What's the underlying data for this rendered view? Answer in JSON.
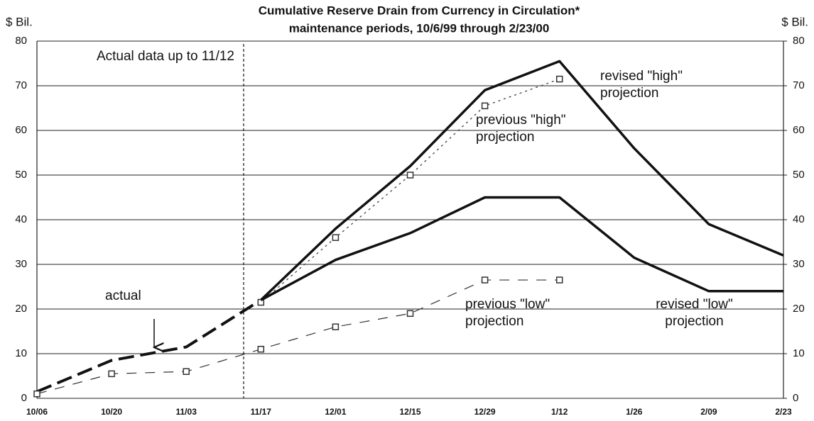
{
  "chart_data": {
    "type": "line",
    "title": "Cumulative Reserve Drain from Currency in Circulation*",
    "subtitle": "maintenance periods, 10/6/99 through 2/23/00",
    "y_label": "$ Bil.",
    "y2_label": "$ Bil.",
    "annotations": [
      "Actual data up to 11/12"
    ],
    "categories": [
      "10/06",
      "10/20",
      "11/03",
      "11/17",
      "12/01",
      "12/15",
      "12/29",
      "1/12",
      "1/26",
      "2/09",
      "2/23"
    ],
    "ylim": [
      0,
      80
    ],
    "yticks": [
      0,
      10,
      20,
      30,
      40,
      50,
      60,
      70,
      80
    ],
    "y2lim": [
      0,
      80
    ],
    "y2ticks": [
      0,
      10,
      20,
      30,
      40,
      50,
      60,
      70,
      80
    ],
    "grid": true,
    "series": [
      {
        "name": "actual",
        "color": "#111111",
        "values": [
          1.5,
          8.5,
          11.5,
          22,
          null,
          null,
          null,
          null,
          null,
          null,
          null
        ]
      },
      {
        "name": "revised \"high\" projection",
        "color": "#111111",
        "values": [
          null,
          null,
          null,
          22,
          38,
          52,
          69,
          75.5,
          56,
          39,
          32
        ]
      },
      {
        "name": "previous \"high\" projection",
        "color": "#333333",
        "values": [
          null,
          null,
          null,
          21.5,
          36,
          50,
          65.5,
          71.5,
          null,
          null,
          null
        ]
      },
      {
        "name": "previous \"low\" projection",
        "color": "#333333",
        "values": [
          1,
          5.5,
          6,
          11,
          16,
          19,
          26.5,
          26.5,
          null,
          null,
          null
        ]
      },
      {
        "name": "revised \"low\" projection",
        "color": "#111111",
        "values": [
          null,
          null,
          null,
          22,
          31,
          37,
          45,
          45,
          31.5,
          24,
          24
        ]
      }
    ]
  }
}
